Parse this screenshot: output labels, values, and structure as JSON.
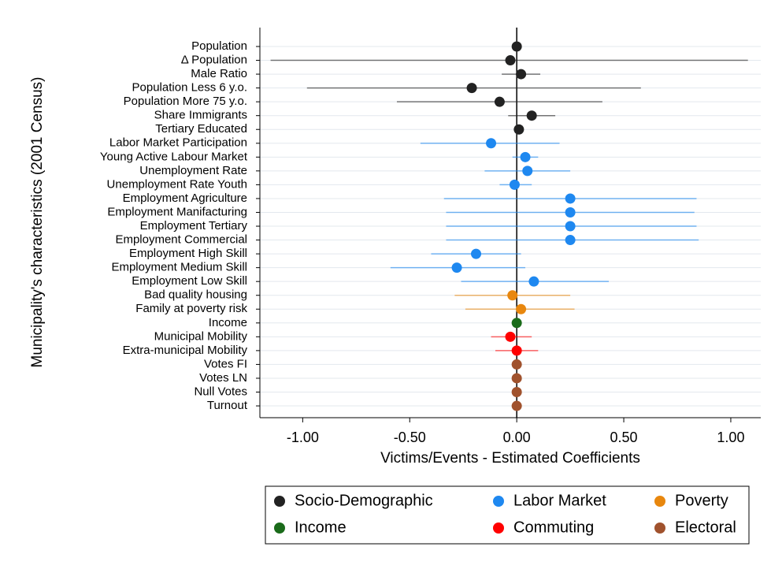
{
  "chart_data": {
    "type": "coefplot",
    "x_label": "Victims/Events - Estimated Coefficients",
    "y_label": "Municipality's characteristics (2001 Census)",
    "xlim": [
      -1.2,
      1.14
    ],
    "xticks": [
      {
        "value": -1,
        "label": "-1.00"
      },
      {
        "value": -0.5,
        "label": "-0.50"
      },
      {
        "value": 0,
        "label": "0.00"
      },
      {
        "value": 0.5,
        "label": "0.50"
      },
      {
        "value": 1,
        "label": "1.00"
      }
    ],
    "xline": 0,
    "grid": true,
    "series": [
      {
        "name": "Socio-Demographic",
        "color": "#222222",
        "categories": [
          "Population",
          "Δ Population",
          "Male Ratio",
          "Population Less 6 y.o.",
          "Population More 75 y.o.",
          "Share Immigrants",
          "Tertiary Educated"
        ],
        "values": [
          0.0,
          -0.03,
          0.02,
          -0.21,
          -0.08,
          0.07,
          0.01
        ],
        "low": [
          0.0,
          -1.15,
          -0.07,
          -0.98,
          -0.56,
          -0.04,
          0.0
        ],
        "high": [
          0.0,
          1.08,
          0.11,
          0.58,
          0.4,
          0.18,
          0.02
        ]
      },
      {
        "name": "Labor Market",
        "color": "#1e88f0",
        "categories": [
          "Labor Market Participation",
          "Young Active Labour Market",
          "Unemployment Rate",
          "Unemployment Rate Youth",
          "Employment Agriculture",
          "Employment Manifacturing",
          "Employment Tertiary",
          "Employment Commercial",
          "Employment High Skill",
          "Employment Medium Skill",
          "Employment Low Skill"
        ],
        "values": [
          -0.12,
          0.04,
          0.05,
          -0.01,
          0.25,
          0.25,
          0.25,
          0.25,
          -0.19,
          -0.28,
          0.08
        ],
        "low": [
          -0.45,
          -0.02,
          -0.15,
          -0.08,
          -0.34,
          -0.33,
          -0.33,
          -0.33,
          -0.4,
          -0.59,
          -0.26
        ],
        "high": [
          0.2,
          0.1,
          0.25,
          0.07,
          0.84,
          0.83,
          0.84,
          0.85,
          0.02,
          0.04,
          0.43
        ]
      },
      {
        "name": "Poverty",
        "color": "#e8870e",
        "categories": [
          "Bad quality housing",
          "Family at poverty risk"
        ],
        "values": [
          -0.02,
          0.02
        ],
        "low": [
          -0.29,
          -0.24
        ],
        "high": [
          0.25,
          0.27
        ]
      },
      {
        "name": "Income",
        "color": "#1a6b1a",
        "categories": [
          "Income"
        ],
        "values": [
          0.0
        ],
        "low": [
          0.0
        ],
        "high": [
          0.0
        ]
      },
      {
        "name": "Commuting",
        "color": "#ff0000",
        "categories": [
          "Municipal Mobility",
          "Extra-municipal Mobility"
        ],
        "values": [
          -0.03,
          0.0
        ],
        "low": [
          -0.12,
          -0.1
        ],
        "high": [
          0.07,
          0.1
        ]
      },
      {
        "name": "Electoral",
        "color": "#a0522d",
        "categories": [
          "Votes FI",
          "Votes LN",
          "Null Votes",
          "Turnout"
        ],
        "values": [
          0.0,
          0.0,
          0.0,
          0.0
        ],
        "low": [
          0.0,
          0.0,
          0.0,
          0.0
        ],
        "high": [
          0.0,
          0.0,
          0.0,
          0.0
        ]
      }
    ]
  }
}
